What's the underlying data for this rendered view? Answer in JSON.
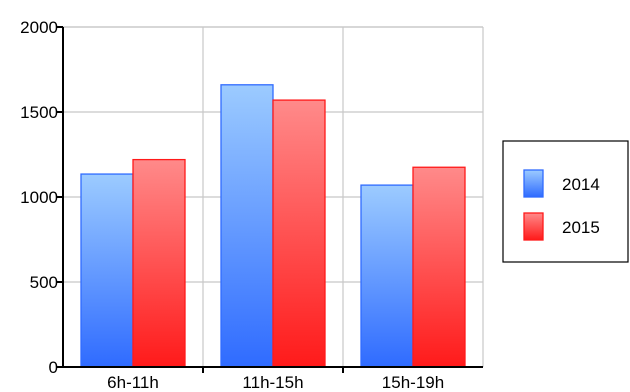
{
  "chart_data": {
    "type": "bar",
    "title": "",
    "xlabel": "",
    "ylabel": "",
    "categories": [
      "6h-11h",
      "11h-15h",
      "15h-19h"
    ],
    "series": [
      {
        "name": "2014",
        "values": [
          1135,
          1660,
          1070
        ],
        "color": "#2f6bff",
        "color_light": "#9ccbff"
      },
      {
        "name": "2015",
        "values": [
          1220,
          1570,
          1175
        ],
        "color": "#ff1a1a",
        "color_light": "#ff8a8a"
      }
    ],
    "ylim": [
      0,
      2000
    ],
    "yticks": [
      "0",
      "500",
      "1000",
      "1500",
      "2000"
    ],
    "grid": true,
    "legend_position": "right"
  }
}
